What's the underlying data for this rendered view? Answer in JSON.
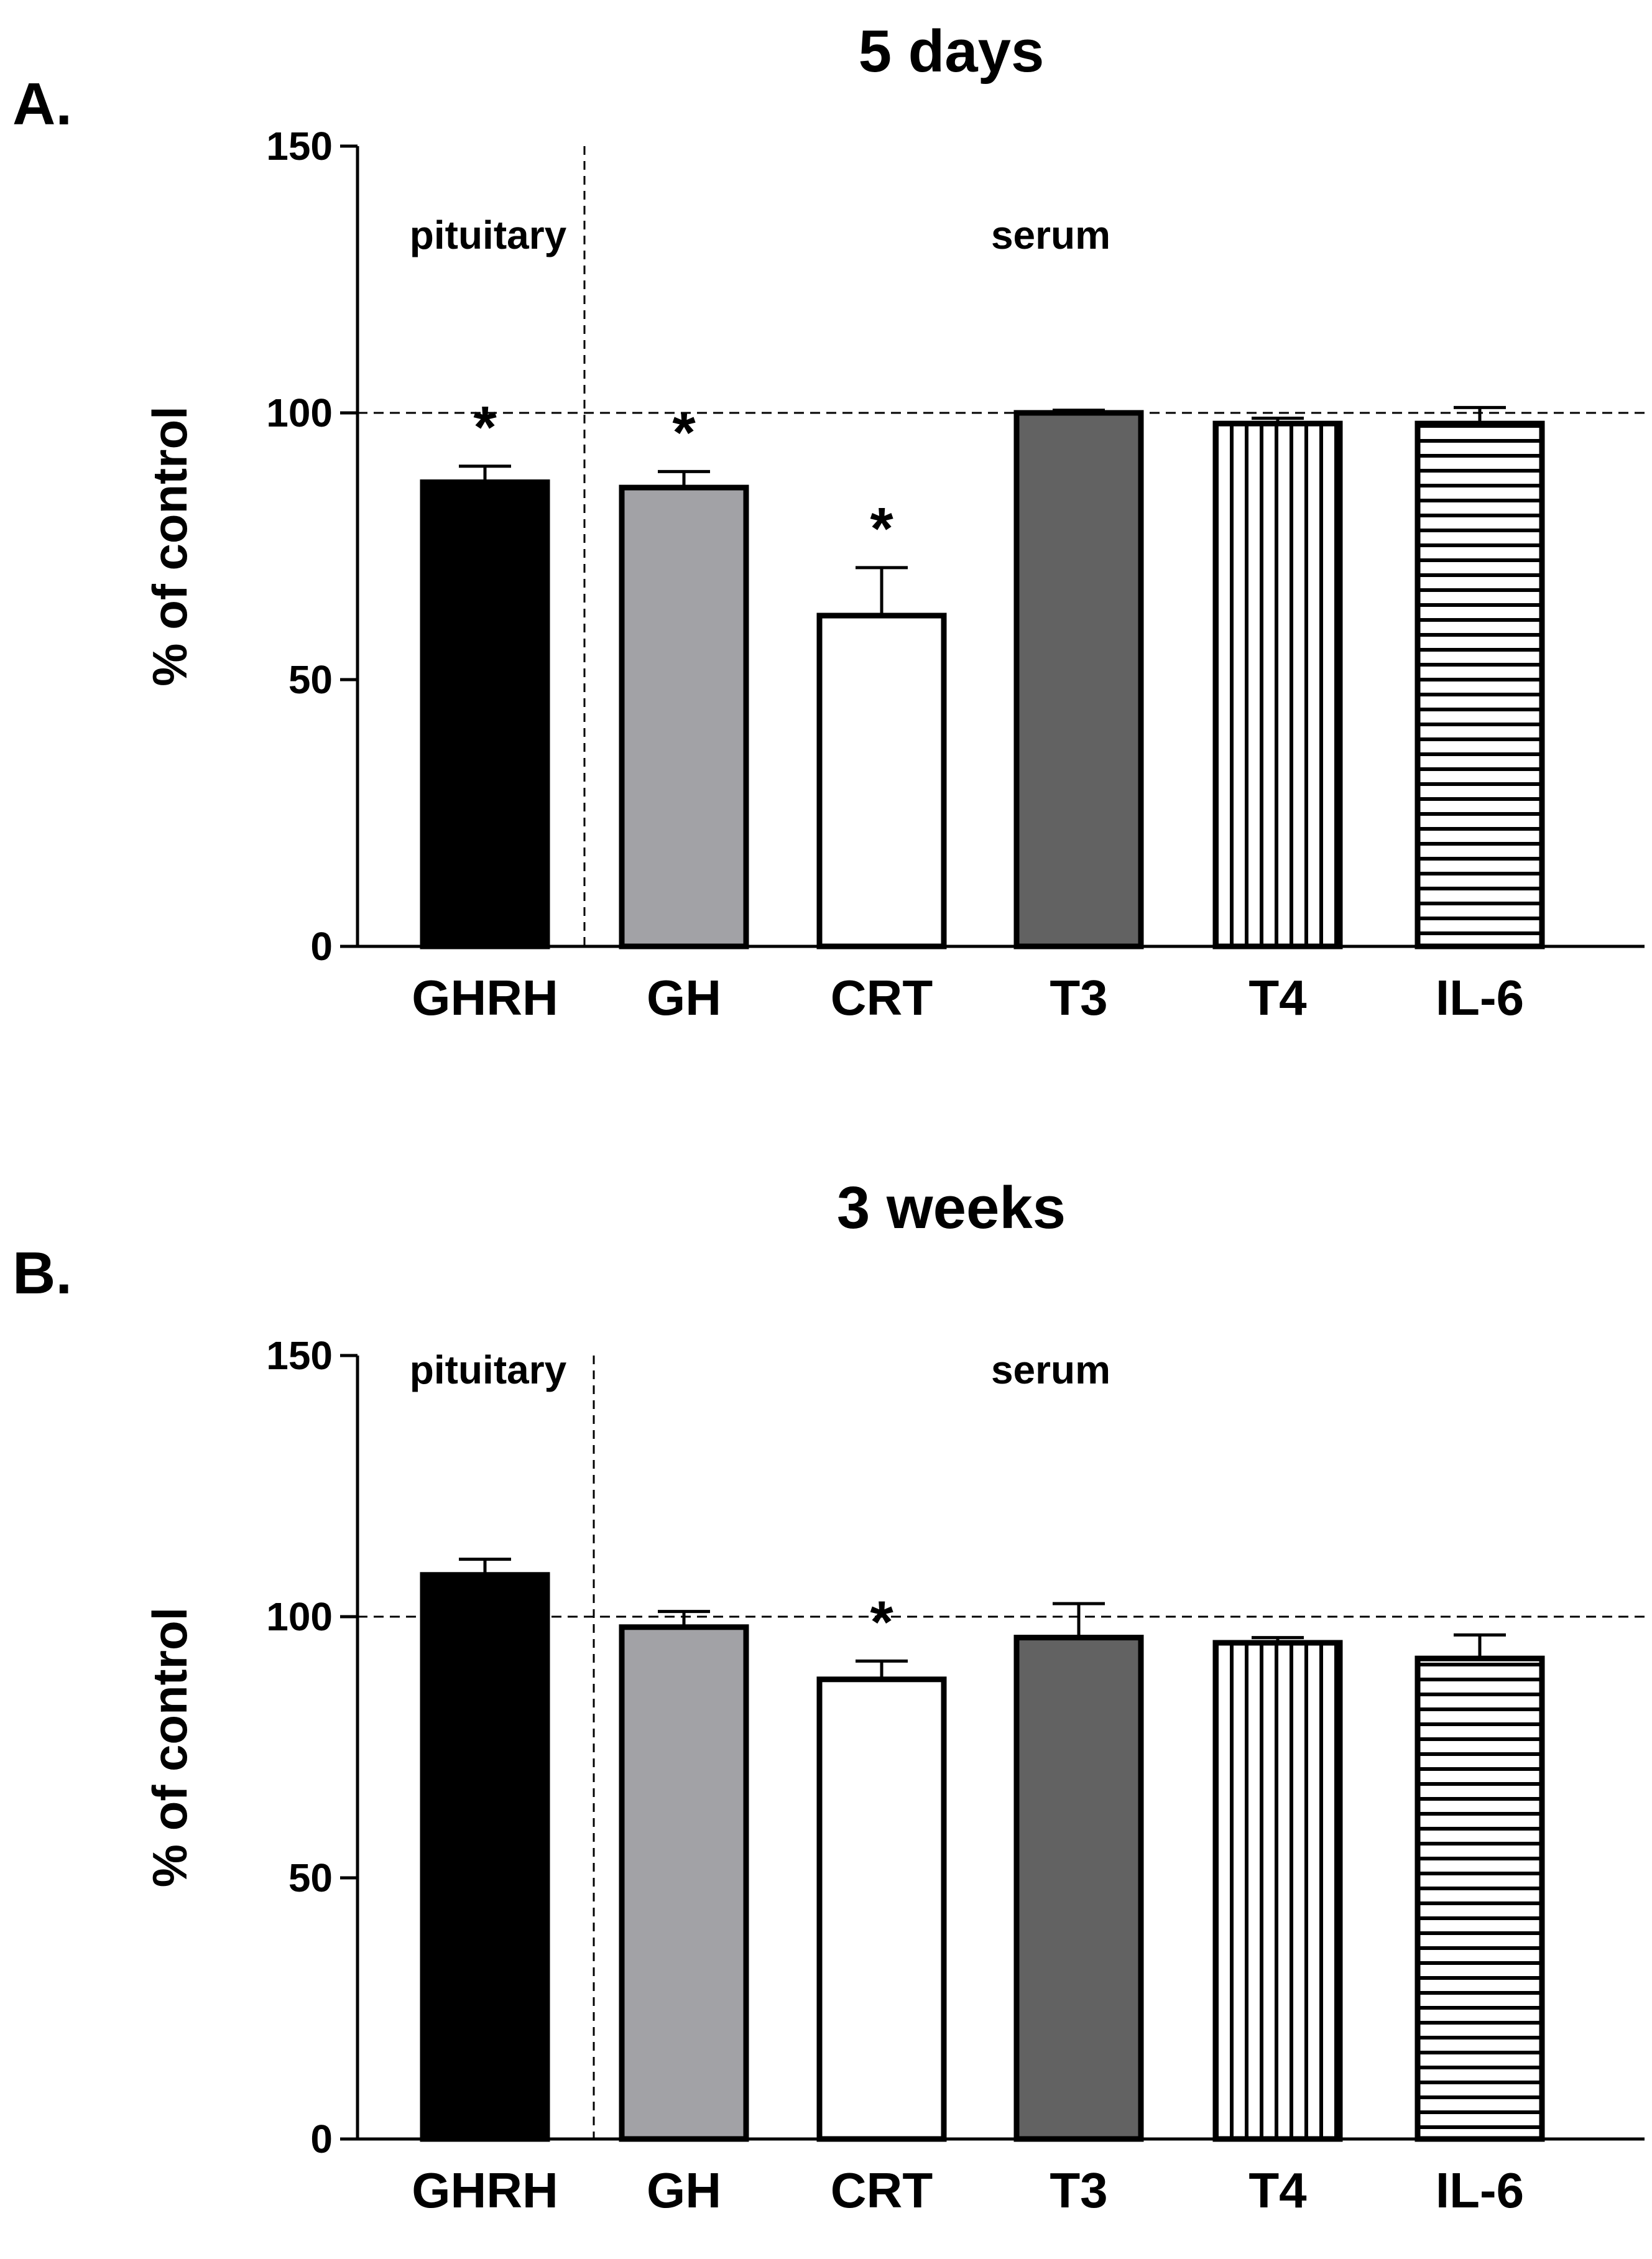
{
  "chart_data": [
    {
      "type": "bar",
      "panel": "A.",
      "title": "5 days",
      "ylabel": "% of control",
      "xlabel": "",
      "ylim": [
        0,
        150
      ],
      "yticks": [
        0,
        50,
        100,
        150
      ],
      "reference_line": 100,
      "regions": [
        "pituitary",
        "serum"
      ],
      "categories": [
        "GHRH",
        "GH",
        "CRT",
        "T3",
        "T4",
        "IL-6"
      ],
      "values": [
        87,
        86,
        62,
        100,
        98,
        98
      ],
      "errors": [
        3,
        3,
        9,
        0.5,
        1,
        3
      ],
      "significance": [
        "*",
        "*",
        "*",
        "",
        "",
        ""
      ]
    },
    {
      "type": "bar",
      "panel": "B.",
      "title": "3 weeks",
      "ylabel": "% of control",
      "xlabel": "",
      "ylim": [
        0,
        150
      ],
      "yticks": [
        0,
        50,
        100,
        150
      ],
      "reference_line": 100,
      "regions": [
        "pituitary",
        "serum"
      ],
      "categories": [
        "GHRH",
        "GH",
        "CRT",
        "T3",
        "T4",
        "IL-6"
      ],
      "values": [
        108,
        98,
        88,
        96,
        95,
        92
      ],
      "errors": [
        3,
        3,
        3.5,
        6.5,
        1,
        4.5
      ],
      "significance": [
        "",
        "",
        "*",
        "",
        "",
        ""
      ]
    }
  ]
}
